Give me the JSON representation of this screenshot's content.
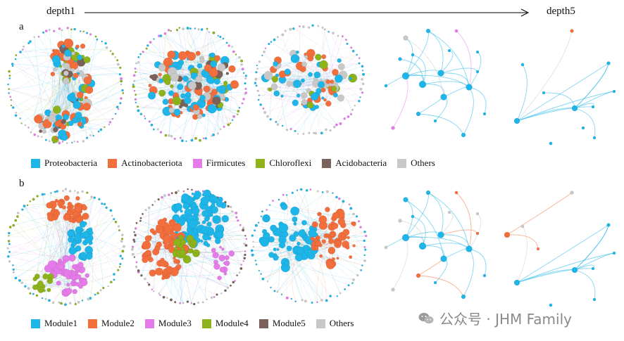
{
  "header": {
    "left_label": "depth1",
    "right_label": "depth5"
  },
  "panels": [
    {
      "letter": "a",
      "kind": "taxa",
      "legend": [
        {
          "label": "Proteobacteria",
          "color": "#1EB5E8"
        },
        {
          "label": "Actinobacteriota",
          "color": "#F26E3C"
        },
        {
          "label": "Firmicutes",
          "color": "#E57BE8"
        },
        {
          "label": "Chloroflexi",
          "color": "#8DB21A"
        },
        {
          "label": "Acidobacteria",
          "color": "#7A625A"
        },
        {
          "label": "Others",
          "color": "#C8C8C8"
        }
      ]
    },
    {
      "letter": "b",
      "kind": "modules",
      "legend": [
        {
          "label": "Module1",
          "color": "#1EB5E8"
        },
        {
          "label": "Module2",
          "color": "#F26E3C"
        },
        {
          "label": "Module3",
          "color": "#E57BE8"
        },
        {
          "label": "Module4",
          "color": "#8DB21A"
        },
        {
          "label": "Module5",
          "color": "#7A625A"
        },
        {
          "label": "Others",
          "color": "#C8C8C8"
        }
      ]
    }
  ],
  "watermark": {
    "text": "公众号 · JHM Family",
    "icon": "wechat-icon"
  }
}
